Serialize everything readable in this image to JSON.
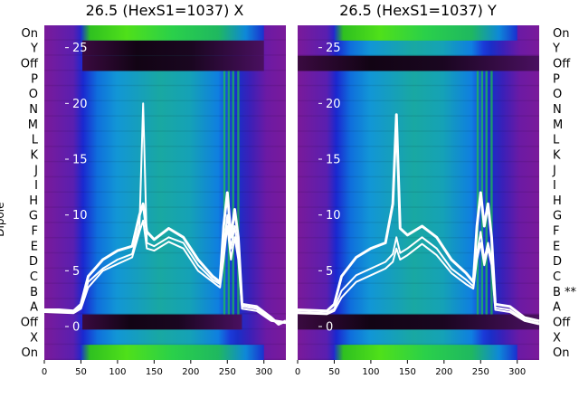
{
  "chart_data": [
    {
      "type": "heatmap",
      "title": "26.5 (HexS1=1037) X",
      "ylabel": "Dipole",
      "xlim": [
        0,
        330
      ],
      "xticks": [
        0,
        50,
        100,
        150,
        200,
        250,
        300
      ],
      "overlay_ylim": [
        -3,
        27
      ],
      "overlay_yticks": [
        0,
        5,
        10,
        15,
        20,
        25
      ],
      "rows": [
        "On",
        "Y",
        "Off",
        "P",
        "O",
        "N",
        "M",
        "L",
        "K",
        "J",
        "I",
        "H",
        "G",
        "F",
        "E",
        "D",
        "C",
        "B",
        "A",
        "Off",
        "X",
        "On"
      ],
      "bands": [
        {
          "row": "On",
          "kind": "green",
          "x": [
            50,
            300
          ]
        },
        {
          "row": "Y",
          "kind": "dark",
          "x": [
            52,
            300
          ]
        },
        {
          "row": "Off",
          "kind": "dark",
          "x": [
            52,
            300
          ]
        },
        {
          "row": "Off",
          "kind": "dark",
          "x": [
            52,
            270
          ],
          "side": "bottom"
        },
        {
          "row": "On",
          "kind": "green",
          "x": [
            50,
            300
          ],
          "side": "bottom"
        }
      ],
      "series": [
        {
          "values_x": [
            0,
            20,
            40,
            50,
            60,
            80,
            100,
            120,
            130,
            135,
            140,
            150,
            170,
            190,
            210,
            230,
            240,
            245,
            250,
            255,
            260,
            265,
            270,
            290,
            310,
            320,
            330
          ],
          "values_y": [
            1.5,
            1.5,
            1.4,
            2.0,
            4.5,
            6.0,
            6.8,
            7.2,
            10.0,
            11.0,
            8.5,
            7.8,
            8.8,
            8.0,
            6.0,
            4.5,
            4.0,
            9.0,
            12.0,
            8.0,
            10.5,
            8.0,
            2.0,
            1.8,
            0.8,
            0.2,
            0.5
          ]
        },
        {
          "values_x": [
            0,
            40,
            50,
            60,
            80,
            100,
            120,
            130,
            135,
            140,
            150,
            170,
            190,
            210,
            230,
            240,
            245,
            250,
            255,
            260,
            265,
            270,
            290,
            310,
            330
          ],
          "values_y": [
            1.4,
            1.3,
            1.8,
            4.0,
            5.2,
            6.0,
            6.5,
            9.0,
            20.0,
            7.5,
            7.2,
            8.0,
            7.5,
            5.5,
            4.2,
            3.8,
            7.0,
            10.0,
            7.0,
            9.0,
            6.5,
            1.8,
            1.6,
            0.6,
            0.4
          ]
        },
        {
          "values_x": [
            0,
            40,
            50,
            60,
            80,
            100,
            120,
            130,
            135,
            140,
            150,
            170,
            190,
            210,
            230,
            240,
            245,
            250,
            255,
            260,
            265,
            270,
            290,
            310,
            330
          ],
          "values_y": [
            1.3,
            1.2,
            1.6,
            3.5,
            5.0,
            5.6,
            6.2,
            8.5,
            9.5,
            7.0,
            6.8,
            7.6,
            7.0,
            5.0,
            4.0,
            3.5,
            6.0,
            9.0,
            6.0,
            8.0,
            6.0,
            1.6,
            1.4,
            0.5,
            0.3
          ]
        }
      ]
    },
    {
      "type": "heatmap",
      "title": "26.5 (HexS1=1037) Y",
      "xlim": [
        0,
        330
      ],
      "xticks": [
        0,
        50,
        100,
        150,
        200,
        250,
        300
      ],
      "overlay_ylim": [
        -3,
        27
      ],
      "overlay_yticks": [
        0,
        5,
        10,
        15,
        20,
        25
      ],
      "rows": [
        "On",
        "Y",
        "Off",
        "P",
        "O",
        "N",
        "M",
        "L",
        "K",
        "J",
        "I",
        "H",
        "G",
        "F",
        "E",
        "D",
        "C",
        "B **",
        "A",
        "Off",
        "X",
        "On"
      ],
      "bands": [
        {
          "row": "On",
          "kind": "green",
          "x": [
            50,
            300
          ]
        },
        {
          "row": "Off",
          "kind": "dark",
          "x": [
            0,
            330
          ],
          "side": "top"
        },
        {
          "row": "Off",
          "kind": "dark",
          "x": [
            0,
            330
          ],
          "side": "bottom"
        },
        {
          "row": "On",
          "kind": "green",
          "x": [
            50,
            300
          ],
          "side": "bottom"
        }
      ],
      "series": [
        {
          "values_x": [
            0,
            40,
            50,
            60,
            80,
            100,
            120,
            130,
            135,
            140,
            150,
            170,
            190,
            210,
            230,
            240,
            245,
            250,
            255,
            260,
            265,
            270,
            290,
            310,
            330
          ],
          "values_y": [
            1.5,
            1.4,
            2.0,
            4.5,
            6.2,
            7.0,
            7.5,
            11.0,
            19.0,
            8.8,
            8.2,
            9.0,
            8.0,
            6.0,
            4.8,
            4.0,
            9.0,
            12.0,
            9.0,
            11.0,
            8.0,
            2.0,
            1.8,
            0.8,
            0.5
          ]
        },
        {
          "values_x": [
            0,
            40,
            50,
            60,
            80,
            100,
            120,
            130,
            135,
            140,
            150,
            170,
            190,
            210,
            230,
            240,
            245,
            250,
            255,
            260,
            265,
            270,
            290,
            310,
            330
          ],
          "values_y": [
            1.3,
            1.2,
            1.6,
            3.2,
            4.6,
            5.2,
            5.8,
            6.5,
            8.0,
            6.6,
            7.0,
            8.0,
            7.0,
            5.2,
            4.2,
            3.6,
            6.5,
            8.5,
            6.0,
            7.5,
            6.0,
            1.7,
            1.5,
            0.6,
            0.3
          ]
        },
        {
          "values_x": [
            0,
            40,
            50,
            60,
            80,
            100,
            120,
            130,
            135,
            140,
            150,
            170,
            190,
            210,
            230,
            240,
            245,
            250,
            255,
            260,
            265,
            270,
            290,
            310,
            330
          ],
          "values_y": [
            1.2,
            1.1,
            1.4,
            2.6,
            4.0,
            4.6,
            5.2,
            5.8,
            7.0,
            6.0,
            6.4,
            7.4,
            6.4,
            4.8,
            3.8,
            3.4,
            6.0,
            7.5,
            5.5,
            7.0,
            5.5,
            1.5,
            1.3,
            0.5,
            0.2
          ]
        }
      ]
    }
  ]
}
